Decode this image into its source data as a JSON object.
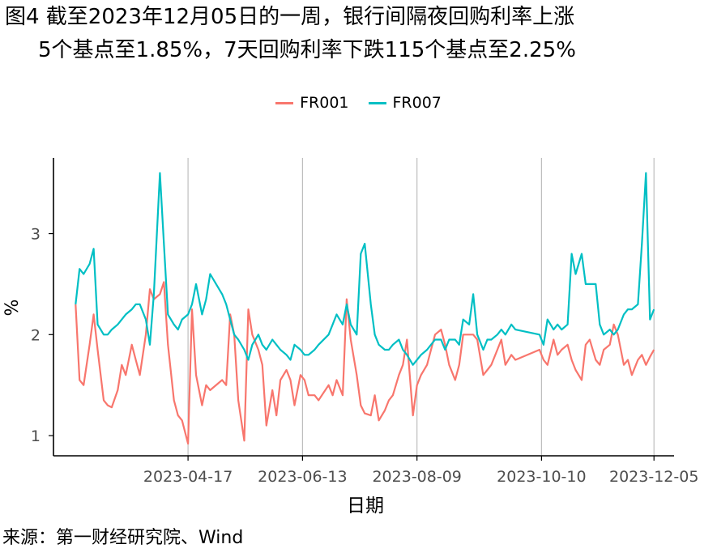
{
  "title_line1": "图4  截至2023年12月05日的一周，银行间隔夜回购利率上涨",
  "title_line2": "5个基点至1.85%，7天回购利率下跌115个基点至2.25%",
  "source": "来源：第一财经研究院、Wind",
  "colors": {
    "FR001": "#F8766D",
    "FR007": "#00BFC4",
    "grid": "#BEBEBE",
    "axis": "#000000"
  },
  "chart_data": {
    "type": "line",
    "xlabel": "日期",
    "ylabel": "%",
    "x_ticks": [
      "2023-04-17",
      "2023-06-13",
      "2023-08-09",
      "2023-10-10",
      "2023-12-05"
    ],
    "y_ticks": [
      1,
      2,
      3
    ],
    "ylim": [
      0.8,
      3.75
    ],
    "grid": "vertical",
    "legend_position": "top",
    "series": [
      {
        "name": "FR001",
        "points": [
          [
            "2023-02-20",
            2.3
          ],
          [
            "2023-02-22",
            1.55
          ],
          [
            "2023-02-24",
            1.5
          ],
          [
            "2023-02-27",
            1.9
          ],
          [
            "2023-03-01",
            2.2
          ],
          [
            "2023-03-03",
            1.85
          ],
          [
            "2023-03-06",
            1.35
          ],
          [
            "2023-03-08",
            1.3
          ],
          [
            "2023-03-10",
            1.28
          ],
          [
            "2023-03-13",
            1.45
          ],
          [
            "2023-03-15",
            1.7
          ],
          [
            "2023-03-17",
            1.6
          ],
          [
            "2023-03-20",
            1.9
          ],
          [
            "2023-03-22",
            1.75
          ],
          [
            "2023-03-24",
            1.6
          ],
          [
            "2023-03-27",
            2.0
          ],
          [
            "2023-03-29",
            2.45
          ],
          [
            "2023-03-31",
            2.35
          ],
          [
            "2023-04-03",
            2.4
          ],
          [
            "2023-04-05",
            2.52
          ],
          [
            "2023-04-07",
            1.9
          ],
          [
            "2023-04-10",
            1.35
          ],
          [
            "2023-04-12",
            1.2
          ],
          [
            "2023-04-14",
            1.15
          ],
          [
            "2023-04-17",
            0.92
          ],
          [
            "2023-04-19",
            2.25
          ],
          [
            "2023-04-21",
            1.6
          ],
          [
            "2023-04-24",
            1.3
          ],
          [
            "2023-04-26",
            1.5
          ],
          [
            "2023-04-28",
            1.45
          ],
          [
            "2023-05-04",
            1.55
          ],
          [
            "2023-05-06",
            1.5
          ],
          [
            "2023-05-08",
            2.2
          ],
          [
            "2023-05-10",
            2.0
          ],
          [
            "2023-05-12",
            1.35
          ],
          [
            "2023-05-15",
            0.95
          ],
          [
            "2023-05-17",
            2.25
          ],
          [
            "2023-05-19",
            2.0
          ],
          [
            "2023-05-22",
            1.85
          ],
          [
            "2023-05-24",
            1.7
          ],
          [
            "2023-05-26",
            1.1
          ],
          [
            "2023-05-29",
            1.45
          ],
          [
            "2023-05-31",
            1.2
          ],
          [
            "2023-06-02",
            1.55
          ],
          [
            "2023-06-05",
            1.65
          ],
          [
            "2023-06-07",
            1.55
          ],
          [
            "2023-06-09",
            1.3
          ],
          [
            "2023-06-12",
            1.6
          ],
          [
            "2023-06-14",
            1.55
          ],
          [
            "2023-06-16",
            1.4
          ],
          [
            "2023-06-19",
            1.4
          ],
          [
            "2023-06-21",
            1.35
          ],
          [
            "2023-06-26",
            1.5
          ],
          [
            "2023-06-28",
            1.4
          ],
          [
            "2023-06-30",
            1.55
          ],
          [
            "2023-07-03",
            1.4
          ],
          [
            "2023-07-05",
            2.35
          ],
          [
            "2023-07-07",
            1.95
          ],
          [
            "2023-07-10",
            1.6
          ],
          [
            "2023-07-12",
            1.3
          ],
          [
            "2023-07-14",
            1.22
          ],
          [
            "2023-07-17",
            1.2
          ],
          [
            "2023-07-19",
            1.4
          ],
          [
            "2023-07-21",
            1.15
          ],
          [
            "2023-07-24",
            1.25
          ],
          [
            "2023-07-26",
            1.35
          ],
          [
            "2023-07-28",
            1.4
          ],
          [
            "2023-07-31",
            1.6
          ],
          [
            "2023-08-02",
            1.7
          ],
          [
            "2023-08-04",
            1.95
          ],
          [
            "2023-08-07",
            1.2
          ],
          [
            "2023-08-09",
            1.5
          ],
          [
            "2023-08-11",
            1.6
          ],
          [
            "2023-08-14",
            1.7
          ],
          [
            "2023-08-16",
            1.85
          ],
          [
            "2023-08-18",
            2.0
          ],
          [
            "2023-08-21",
            2.05
          ],
          [
            "2023-08-23",
            1.9
          ],
          [
            "2023-08-25",
            1.7
          ],
          [
            "2023-08-28",
            1.55
          ],
          [
            "2023-08-30",
            1.7
          ],
          [
            "2023-09-01",
            2.0
          ],
          [
            "2023-09-04",
            2.0
          ],
          [
            "2023-09-06",
            2.0
          ],
          [
            "2023-09-08",
            1.95
          ],
          [
            "2023-09-11",
            1.6
          ],
          [
            "2023-09-13",
            1.65
          ],
          [
            "2023-09-15",
            1.7
          ],
          [
            "2023-09-18",
            1.85
          ],
          [
            "2023-09-20",
            1.95
          ],
          [
            "2023-09-22",
            1.7
          ],
          [
            "2023-09-25",
            1.8
          ],
          [
            "2023-09-27",
            1.75
          ],
          [
            "2023-10-09",
            1.85
          ],
          [
            "2023-10-11",
            1.75
          ],
          [
            "2023-10-13",
            1.7
          ],
          [
            "2023-10-16",
            1.95
          ],
          [
            "2023-10-18",
            1.8
          ],
          [
            "2023-10-20",
            1.85
          ],
          [
            "2023-10-23",
            1.9
          ],
          [
            "2023-10-25",
            1.75
          ],
          [
            "2023-10-27",
            1.65
          ],
          [
            "2023-10-30",
            1.55
          ],
          [
            "2023-11-01",
            1.9
          ],
          [
            "2023-11-03",
            1.95
          ],
          [
            "2023-11-06",
            1.75
          ],
          [
            "2023-11-08",
            1.7
          ],
          [
            "2023-11-10",
            1.85
          ],
          [
            "2023-11-13",
            1.9
          ],
          [
            "2023-11-15",
            2.1
          ],
          [
            "2023-11-17",
            2.0
          ],
          [
            "2023-11-20",
            1.7
          ],
          [
            "2023-11-22",
            1.75
          ],
          [
            "2023-11-24",
            1.6
          ],
          [
            "2023-11-27",
            1.75
          ],
          [
            "2023-11-29",
            1.8
          ],
          [
            "2023-12-01",
            1.7
          ],
          [
            "2023-12-03",
            1.78
          ],
          [
            "2023-12-05",
            1.85
          ]
        ]
      },
      {
        "name": "FR007",
        "points": [
          [
            "2023-02-20",
            2.3
          ],
          [
            "2023-02-22",
            2.65
          ],
          [
            "2023-02-24",
            2.6
          ],
          [
            "2023-02-27",
            2.7
          ],
          [
            "2023-03-01",
            2.85
          ],
          [
            "2023-03-03",
            2.1
          ],
          [
            "2023-03-06",
            2.0
          ],
          [
            "2023-03-08",
            2.0
          ],
          [
            "2023-03-10",
            2.05
          ],
          [
            "2023-03-13",
            2.1
          ],
          [
            "2023-03-15",
            2.15
          ],
          [
            "2023-03-17",
            2.2
          ],
          [
            "2023-03-20",
            2.25
          ],
          [
            "2023-03-22",
            2.3
          ],
          [
            "2023-03-24",
            2.3
          ],
          [
            "2023-03-27",
            2.15
          ],
          [
            "2023-03-29",
            1.9
          ],
          [
            "2023-03-31",
            2.4
          ],
          [
            "2023-04-03",
            3.6
          ],
          [
            "2023-04-05",
            2.9
          ],
          [
            "2023-04-07",
            2.2
          ],
          [
            "2023-04-10",
            2.1
          ],
          [
            "2023-04-12",
            2.05
          ],
          [
            "2023-04-14",
            2.15
          ],
          [
            "2023-04-17",
            2.2
          ],
          [
            "2023-04-19",
            2.3
          ],
          [
            "2023-04-21",
            2.5
          ],
          [
            "2023-04-24",
            2.2
          ],
          [
            "2023-04-26",
            2.35
          ],
          [
            "2023-04-28",
            2.6
          ],
          [
            "2023-05-04",
            2.4
          ],
          [
            "2023-05-06",
            2.3
          ],
          [
            "2023-05-08",
            2.15
          ],
          [
            "2023-05-10",
            2.0
          ],
          [
            "2023-05-12",
            1.95
          ],
          [
            "2023-05-15",
            1.85
          ],
          [
            "2023-05-17",
            1.75
          ],
          [
            "2023-05-19",
            1.9
          ],
          [
            "2023-05-22",
            2.0
          ],
          [
            "2023-05-24",
            1.9
          ],
          [
            "2023-05-26",
            1.85
          ],
          [
            "2023-05-29",
            1.95
          ],
          [
            "2023-05-31",
            1.9
          ],
          [
            "2023-06-02",
            1.85
          ],
          [
            "2023-06-05",
            1.8
          ],
          [
            "2023-06-07",
            1.75
          ],
          [
            "2023-06-09",
            1.9
          ],
          [
            "2023-06-12",
            1.85
          ],
          [
            "2023-06-14",
            1.8
          ],
          [
            "2023-06-16",
            1.8
          ],
          [
            "2023-06-19",
            1.85
          ],
          [
            "2023-06-21",
            1.9
          ],
          [
            "2023-06-26",
            2.0
          ],
          [
            "2023-06-28",
            2.1
          ],
          [
            "2023-06-30",
            2.2
          ],
          [
            "2023-07-03",
            2.1
          ],
          [
            "2023-07-05",
            2.3
          ],
          [
            "2023-07-07",
            2.1
          ],
          [
            "2023-07-10",
            2.0
          ],
          [
            "2023-07-12",
            2.8
          ],
          [
            "2023-07-14",
            2.9
          ],
          [
            "2023-07-17",
            2.3
          ],
          [
            "2023-07-19",
            2.0
          ],
          [
            "2023-07-21",
            1.9
          ],
          [
            "2023-07-24",
            1.85
          ],
          [
            "2023-07-26",
            1.85
          ],
          [
            "2023-07-28",
            1.9
          ],
          [
            "2023-07-31",
            1.95
          ],
          [
            "2023-08-02",
            1.85
          ],
          [
            "2023-08-04",
            1.8
          ],
          [
            "2023-08-07",
            1.7
          ],
          [
            "2023-08-09",
            1.75
          ],
          [
            "2023-08-11",
            1.8
          ],
          [
            "2023-08-14",
            1.85
          ],
          [
            "2023-08-16",
            1.9
          ],
          [
            "2023-08-18",
            1.95
          ],
          [
            "2023-08-21",
            1.95
          ],
          [
            "2023-08-23",
            1.85
          ],
          [
            "2023-08-25",
            1.95
          ],
          [
            "2023-08-28",
            1.95
          ],
          [
            "2023-08-30",
            1.9
          ],
          [
            "2023-09-01",
            2.15
          ],
          [
            "2023-09-04",
            2.1
          ],
          [
            "2023-09-06",
            2.4
          ],
          [
            "2023-09-08",
            2.0
          ],
          [
            "2023-09-11",
            1.85
          ],
          [
            "2023-09-13",
            1.95
          ],
          [
            "2023-09-15",
            1.95
          ],
          [
            "2023-09-18",
            2.0
          ],
          [
            "2023-09-20",
            2.05
          ],
          [
            "2023-09-22",
            2.0
          ],
          [
            "2023-09-25",
            2.1
          ],
          [
            "2023-09-27",
            2.05
          ],
          [
            "2023-10-09",
            2.0
          ],
          [
            "2023-10-11",
            1.9
          ],
          [
            "2023-10-13",
            2.15
          ],
          [
            "2023-10-16",
            2.05
          ],
          [
            "2023-10-18",
            2.1
          ],
          [
            "2023-10-20",
            2.05
          ],
          [
            "2023-10-23",
            2.1
          ],
          [
            "2023-10-25",
            2.8
          ],
          [
            "2023-10-27",
            2.6
          ],
          [
            "2023-10-30",
            2.8
          ],
          [
            "2023-11-01",
            2.5
          ],
          [
            "2023-11-03",
            2.5
          ],
          [
            "2023-11-06",
            2.5
          ],
          [
            "2023-11-08",
            2.1
          ],
          [
            "2023-11-10",
            2.0
          ],
          [
            "2023-11-13",
            2.05
          ],
          [
            "2023-11-15",
            2.0
          ],
          [
            "2023-11-17",
            2.05
          ],
          [
            "2023-11-20",
            2.2
          ],
          [
            "2023-11-22",
            2.25
          ],
          [
            "2023-11-24",
            2.25
          ],
          [
            "2023-11-27",
            2.3
          ],
          [
            "2023-11-29",
            2.9
          ],
          [
            "2023-12-01",
            3.6
          ],
          [
            "2023-12-03",
            2.15
          ],
          [
            "2023-12-05",
            2.25
          ]
        ]
      }
    ]
  }
}
